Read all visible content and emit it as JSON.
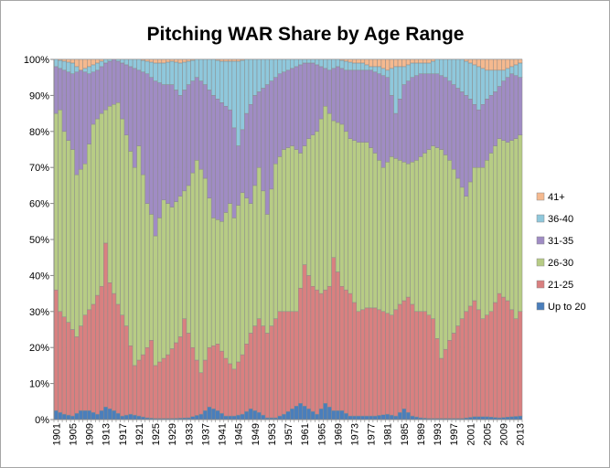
{
  "chart_data": {
    "type": "bar",
    "stacked": true,
    "percent_stacked": true,
    "title": "Pitching WAR Share by Age Range",
    "xlabel": "",
    "ylabel": "",
    "ylim": [
      0,
      100
    ],
    "y_ticks": [
      "0%",
      "10%",
      "20%",
      "30%",
      "40%",
      "50%",
      "60%",
      "70%",
      "80%",
      "90%",
      "100%"
    ],
    "x_start": 1901,
    "x_end": 2013,
    "x_tick_labels": [
      "1901",
      "1905",
      "1909",
      "1913",
      "1917",
      "1921",
      "1925",
      "1929",
      "1933",
      "1937",
      "1941",
      "1945",
      "1949",
      "1953",
      "1957",
      "1961",
      "1965",
      "1969",
      "1973",
      "1977",
      "1981",
      "1985",
      "1989",
      "1993",
      "1997",
      "2001",
      "2005",
      "2009",
      "2013"
    ],
    "grid": true,
    "legend_position": "right",
    "series": [
      {
        "name": "Up to 20",
        "color": "#4a7ebb",
        "anchors": [
          [
            1901,
            2.5
          ],
          [
            1903,
            1.5
          ],
          [
            1905,
            1
          ],
          [
            1907,
            2.5
          ],
          [
            1909,
            2.5
          ],
          [
            1911,
            1.5
          ],
          [
            1913,
            3.5
          ],
          [
            1915,
            2.5
          ],
          [
            1917,
            1
          ],
          [
            1919,
            1.5
          ],
          [
            1921,
            1
          ],
          [
            1923,
            0.5
          ],
          [
            1925,
            0.3
          ],
          [
            1929,
            0.3
          ],
          [
            1933,
            0.5
          ],
          [
            1936,
            1.5
          ],
          [
            1938,
            3.5
          ],
          [
            1940,
            2.5
          ],
          [
            1942,
            1
          ],
          [
            1944,
            1
          ],
          [
            1946,
            1.5
          ],
          [
            1948,
            3
          ],
          [
            1950,
            2
          ],
          [
            1952,
            0.5
          ],
          [
            1954,
            0.5
          ],
          [
            1956,
            1.5
          ],
          [
            1958,
            3
          ],
          [
            1960,
            4.5
          ],
          [
            1962,
            3
          ],
          [
            1964,
            1.5
          ],
          [
            1966,
            4.5
          ],
          [
            1968,
            2.5
          ],
          [
            1970,
            2.5
          ],
          [
            1972,
            1
          ],
          [
            1974,
            1
          ],
          [
            1976,
            1
          ],
          [
            1978,
            1
          ],
          [
            1981,
            1.5
          ],
          [
            1983,
            1
          ],
          [
            1985,
            3
          ],
          [
            1987,
            1
          ],
          [
            1989,
            0.5
          ],
          [
            1991,
            0.3
          ],
          [
            1995,
            0.3
          ],
          [
            1999,
            0.3
          ],
          [
            2002,
            0.8
          ],
          [
            2005,
            0.8
          ],
          [
            2008,
            0.5
          ],
          [
            2011,
            0.8
          ],
          [
            2013,
            1
          ]
        ]
      },
      {
        "name": "21-25",
        "color": "#d98080",
        "anchors": [
          [
            1901,
            36
          ],
          [
            1902,
            30
          ],
          [
            1904,
            27
          ],
          [
            1906,
            23
          ],
          [
            1908,
            29
          ],
          [
            1910,
            32
          ],
          [
            1912,
            37
          ],
          [
            1913,
            49
          ],
          [
            1914,
            38
          ],
          [
            1916,
            32
          ],
          [
            1918,
            26
          ],
          [
            1920,
            15
          ],
          [
            1922,
            18
          ],
          [
            1924,
            22
          ],
          [
            1925,
            15
          ],
          [
            1928,
            18
          ],
          [
            1931,
            23
          ],
          [
            1932,
            28
          ],
          [
            1934,
            20
          ],
          [
            1936,
            13
          ],
          [
            1938,
            20
          ],
          [
            1940,
            21
          ],
          [
            1942,
            17
          ],
          [
            1944,
            14
          ],
          [
            1946,
            18
          ],
          [
            1948,
            24
          ],
          [
            1950,
            28
          ],
          [
            1952,
            24
          ],
          [
            1955,
            30
          ],
          [
            1957,
            30
          ],
          [
            1959,
            30
          ],
          [
            1961,
            43
          ],
          [
            1963,
            37
          ],
          [
            1965,
            35
          ],
          [
            1967,
            37
          ],
          [
            1968,
            45
          ],
          [
            1970,
            37
          ],
          [
            1972,
            35
          ],
          [
            1974,
            30
          ],
          [
            1976,
            31
          ],
          [
            1978,
            31
          ],
          [
            1980,
            30
          ],
          [
            1982,
            29
          ],
          [
            1984,
            32
          ],
          [
            1986,
            34
          ],
          [
            1988,
            30
          ],
          [
            1990,
            30
          ],
          [
            1992,
            28
          ],
          [
            1994,
            17
          ],
          [
            1996,
            22
          ],
          [
            1998,
            26
          ],
          [
            2000,
            30
          ],
          [
            2002,
            33
          ],
          [
            2004,
            28
          ],
          [
            2006,
            30
          ],
          [
            2008,
            35
          ],
          [
            2010,
            33
          ],
          [
            2012,
            28
          ],
          [
            2013,
            30
          ]
        ]
      },
      {
        "name": "26-30",
        "color": "#b7cc85",
        "anchors": [
          [
            1901,
            85
          ],
          [
            1902,
            86
          ],
          [
            1903,
            80
          ],
          [
            1905,
            75
          ],
          [
            1906,
            68
          ],
          [
            1908,
            71
          ],
          [
            1910,
            82
          ],
          [
            1912,
            85
          ],
          [
            1914,
            87
          ],
          [
            1916,
            88
          ],
          [
            1918,
            79
          ],
          [
            1920,
            70
          ],
          [
            1921,
            76
          ],
          [
            1923,
            60
          ],
          [
            1924,
            57
          ],
          [
            1925,
            51
          ],
          [
            1927,
            61
          ],
          [
            1929,
            59
          ],
          [
            1931,
            62
          ],
          [
            1933,
            65
          ],
          [
            1935,
            72
          ],
          [
            1937,
            67
          ],
          [
            1939,
            56
          ],
          [
            1941,
            55
          ],
          [
            1943,
            60
          ],
          [
            1944,
            56
          ],
          [
            1946,
            63
          ],
          [
            1948,
            60
          ],
          [
            1950,
            70
          ],
          [
            1952,
            57
          ],
          [
            1954,
            71
          ],
          [
            1956,
            75
          ],
          [
            1958,
            76
          ],
          [
            1960,
            74
          ],
          [
            1962,
            78
          ],
          [
            1964,
            80
          ],
          [
            1966,
            87
          ],
          [
            1968,
            83
          ],
          [
            1970,
            82
          ],
          [
            1972,
            78
          ],
          [
            1974,
            77
          ],
          [
            1976,
            77
          ],
          [
            1978,
            74
          ],
          [
            1980,
            70
          ],
          [
            1982,
            73
          ],
          [
            1984,
            72
          ],
          [
            1986,
            71
          ],
          [
            1988,
            72
          ],
          [
            1990,
            74
          ],
          [
            1992,
            76
          ],
          [
            1994,
            75
          ],
          [
            1996,
            72
          ],
          [
            1998,
            67
          ],
          [
            2000,
            62
          ],
          [
            2002,
            70
          ],
          [
            2004,
            70
          ],
          [
            2006,
            74
          ],
          [
            2008,
            78
          ],
          [
            2010,
            77
          ],
          [
            2012,
            78
          ],
          [
            2013,
            79
          ]
        ]
      },
      {
        "name": "31-35",
        "color": "#a08cc4",
        "anchors": [
          [
            1901,
            98
          ],
          [
            1903,
            97
          ],
          [
            1905,
            96
          ],
          [
            1907,
            97
          ],
          [
            1909,
            96
          ],
          [
            1911,
            97
          ],
          [
            1913,
            99
          ],
          [
            1915,
            100
          ],
          [
            1917,
            99
          ],
          [
            1919,
            98
          ],
          [
            1921,
            97
          ],
          [
            1923,
            96
          ],
          [
            1925,
            94
          ],
          [
            1927,
            93
          ],
          [
            1929,
            93
          ],
          [
            1931,
            90
          ],
          [
            1933,
            93
          ],
          [
            1935,
            95
          ],
          [
            1937,
            93
          ],
          [
            1939,
            90
          ],
          [
            1941,
            88
          ],
          [
            1943,
            86
          ],
          [
            1945,
            76
          ],
          [
            1947,
            85
          ],
          [
            1949,
            90
          ],
          [
            1951,
            92
          ],
          [
            1953,
            94
          ],
          [
            1955,
            96
          ],
          [
            1957,
            97
          ],
          [
            1959,
            98
          ],
          [
            1961,
            99
          ],
          [
            1963,
            99
          ],
          [
            1965,
            98
          ],
          [
            1967,
            97
          ],
          [
            1969,
            98
          ],
          [
            1971,
            97
          ],
          [
            1973,
            97
          ],
          [
            1975,
            97
          ],
          [
            1977,
            97
          ],
          [
            1979,
            96
          ],
          [
            1981,
            95
          ],
          [
            1983,
            85
          ],
          [
            1985,
            93
          ],
          [
            1987,
            95
          ],
          [
            1989,
            96
          ],
          [
            1991,
            96
          ],
          [
            1993,
            96
          ],
          [
            1995,
            95
          ],
          [
            1997,
            93
          ],
          [
            1999,
            91
          ],
          [
            2001,
            89
          ],
          [
            2003,
            86
          ],
          [
            2005,
            89
          ],
          [
            2007,
            91
          ],
          [
            2009,
            94
          ],
          [
            2011,
            96
          ],
          [
            2013,
            95
          ]
        ]
      },
      {
        "name": "36-40",
        "color": "#8fc8dc",
        "anchors": [
          [
            1901,
            100
          ],
          [
            1903,
            99.5
          ],
          [
            1905,
            99
          ],
          [
            1907,
            97
          ],
          [
            1909,
            98
          ],
          [
            1911,
            99
          ],
          [
            1913,
            100
          ],
          [
            1915,
            100
          ],
          [
            1917,
            100
          ],
          [
            1919,
            100
          ],
          [
            1921,
            100
          ],
          [
            1923,
            99.5
          ],
          [
            1925,
            99
          ],
          [
            1927,
            99
          ],
          [
            1929,
            99.5
          ],
          [
            1931,
            99
          ],
          [
            1933,
            99.5
          ],
          [
            1935,
            100
          ],
          [
            1937,
            100
          ],
          [
            1939,
            100
          ],
          [
            1941,
            99.5
          ],
          [
            1943,
            99.5
          ],
          [
            1945,
            99.5
          ],
          [
            1947,
            100
          ],
          [
            1949,
            100
          ],
          [
            1951,
            100
          ],
          [
            1953,
            100
          ],
          [
            1955,
            100
          ],
          [
            1957,
            100
          ],
          [
            1959,
            100
          ],
          [
            1961,
            100
          ],
          [
            1963,
            100
          ],
          [
            1965,
            100
          ],
          [
            1967,
            100
          ],
          [
            1969,
            100
          ],
          [
            1971,
            99.5
          ],
          [
            1973,
            99
          ],
          [
            1975,
            99
          ],
          [
            1977,
            98
          ],
          [
            1979,
            98
          ],
          [
            1981,
            97
          ],
          [
            1983,
            98
          ],
          [
            1985,
            98
          ],
          [
            1987,
            99
          ],
          [
            1989,
            99
          ],
          [
            1991,
            99
          ],
          [
            1993,
            100
          ],
          [
            1995,
            100
          ],
          [
            1997,
            100
          ],
          [
            1999,
            100
          ],
          [
            2001,
            99
          ],
          [
            2003,
            98
          ],
          [
            2005,
            97
          ],
          [
            2007,
            97
          ],
          [
            2009,
            97
          ],
          [
            2011,
            98
          ],
          [
            2013,
            99
          ]
        ]
      },
      {
        "name": "41+",
        "color": "#f5b98f",
        "anchors": [
          [
            1901,
            100
          ],
          [
            2013,
            100
          ]
        ]
      }
    ]
  }
}
